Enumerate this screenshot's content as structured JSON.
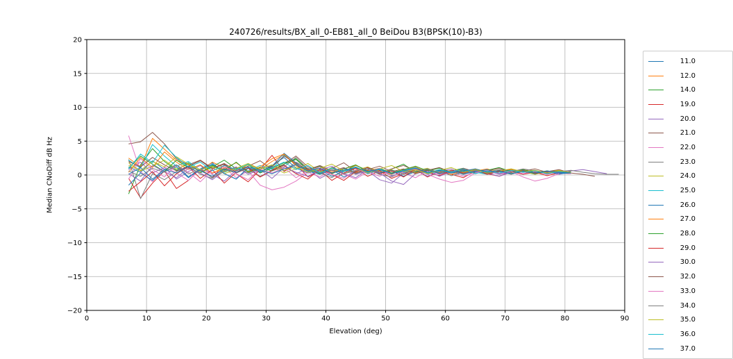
{
  "chart_data": {
    "type": "line",
    "title": "240726/results/BX_all_0-EB81_all_0 BeiDou B3(BPSK(10)-B3)",
    "xlabel": "Elevation (deg)",
    "ylabel": "Median CNoDiff dB Hz",
    "xlim": [
      0,
      90
    ],
    "ylim": [
      -20,
      20
    ],
    "x_ticks": [
      0,
      10,
      20,
      30,
      40,
      50,
      60,
      70,
      80,
      90
    ],
    "y_ticks": [
      -20,
      -15,
      -10,
      -5,
      0,
      5,
      10,
      15,
      20
    ],
    "grid": true,
    "grid_color": "#b0b0b0",
    "legend_position": "outside-right",
    "series": [
      {
        "name": "11.0",
        "color": "#1f77b4",
        "x_start": 7,
        "x_step": 2,
        "values": [
          1.2,
          0.4,
          2.1,
          0.8,
          1.5,
          -0.3,
          0.9,
          1.8,
          0.2,
          -0.6,
          1.1,
          0.5,
          1.4,
          2.6,
          1.0,
          0.3,
          0.8,
          -0.2,
          0.5,
          1.0,
          0.2,
          0.7,
          -0.1,
          0.4,
          0.9,
          0.3,
          0.6,
          0.1,
          0.5,
          0.8,
          0.2,
          0.6,
          0.3,
          0.7,
          0.4,
          0.2,
          0.5,
          0.3
        ]
      },
      {
        "name": "12.0",
        "color": "#ff7f0e",
        "x_start": 7,
        "x_step": 2,
        "values": [
          2.5,
          1.2,
          5.4,
          3.8,
          2.2,
          1.5,
          0.6,
          1.9,
          1.1,
          0.3,
          1.6,
          0.8,
          2.0,
          3.0,
          1.4,
          0.5,
          1.2,
          0.2,
          0.9,
          0.4,
          1.1,
          0.6,
          0.1,
          0.8,
          0.3,
          0.9,
          0.4,
          0.7,
          0.2,
          0.6,
          0.9,
          0.3,
          0.5,
          0.8,
          0.4,
          0.6,
          0.2,
          0.4
        ]
      },
      {
        "name": "14.0",
        "color": "#2ca02c",
        "x_start": 7,
        "x_step": 2,
        "values": [
          -2.8,
          1.5,
          3.9,
          2.0,
          0.7,
          1.8,
          0.4,
          1.2,
          2.2,
          0.9,
          1.5,
          0.3,
          1.0,
          1.8,
          2.4,
          0.8,
          0.2,
          1.1,
          0.5,
          1.4,
          0.7,
          0.2,
          0.9,
          1.6,
          0.4,
          0.8,
          0.1,
          0.6,
          1.0,
          0.4,
          0.7,
          0.2,
          0.8,
          0.5,
          0.1,
          0.6,
          0.3,
          0.5
        ]
      },
      {
        "name": "19.0",
        "color": "#d62728",
        "x_start": 7,
        "x_step": 2,
        "values": [
          -0.5,
          -3.4,
          -1.2,
          0.6,
          -2.0,
          -0.8,
          0.9,
          -0.4,
          1.5,
          0.2,
          -1.0,
          0.8,
          2.9,
          0.5,
          1.6,
          -0.3,
          0.7,
          -0.8,
          0.3,
          1.0,
          -0.2,
          0.6,
          -0.5,
          0.2,
          0.8,
          -0.3,
          0.5,
          0.1,
          -0.4,
          0.6,
          0.2,
          -0.2,
          0.5,
          0.1,
          0.4,
          -0.1,
          0.3,
          0.2
        ]
      },
      {
        "name": "20.0",
        "color": "#9467bd",
        "x_start": 7,
        "x_step": 2,
        "values": [
          0.8,
          1.9,
          0.3,
          1.1,
          -0.6,
          0.5,
          1.4,
          0.1,
          -0.9,
          0.7,
          1.2,
          -0.3,
          0.6,
          1.5,
          0.2,
          0.9,
          -0.5,
          0.4,
          1.0,
          0.1,
          0.6,
          -0.7,
          -1.2,
          0.3,
          0.8,
          -0.2,
          0.5,
          0.9,
          0.1,
          0.6,
          0.3,
          -0.2,
          0.4,
          0.7,
          0.2,
          0.5,
          0.1,
          0.4
        ]
      },
      {
        "name": "21.0",
        "color": "#8c564b",
        "x_start": 7,
        "x_step": 2,
        "values": [
          4.6,
          4.9,
          6.3,
          4.6,
          2.4,
          1.5,
          2.2,
          1.0,
          1.7,
          0.6,
          1.3,
          2.1,
          0.8,
          1.6,
          2.8,
          1.2,
          0.4,
          1.0,
          1.8,
          0.5,
          1.1,
          0.3,
          0.9,
          1.4,
          0.6,
          0.2,
          0.8,
          0.4,
          1.0,
          0.5,
          0.2,
          0.7,
          0.3,
          0.6,
          0.9,
          0.4,
          0.6,
          0.3
        ]
      },
      {
        "name": "22.0",
        "color": "#e377c2",
        "x_start": 7,
        "x_step": 2,
        "values": [
          5.8,
          0.5,
          -1.0,
          1.2,
          0.3,
          -0.8,
          0.9,
          0.2,
          1.1,
          -0.4,
          0.6,
          -1.5,
          -2.2,
          -1.8,
          -0.9,
          0.4,
          -0.3,
          0.8,
          0.1,
          -0.6,
          0.5,
          -0.2,
          0.7,
          0.3,
          -0.4,
          0.6,
          0.1,
          0.5,
          -0.2,
          0.4,
          0.8,
          0.3,
          0.6,
          0.2,
          0.5,
          0.1,
          0.4,
          0.2
        ]
      },
      {
        "name": "23.0",
        "color": "#7f7f7f",
        "x_start": 7,
        "x_step": 2,
        "values": [
          2.3,
          -3.5,
          0.2,
          -0.7,
          0.5,
          1.3,
          0.1,
          -0.5,
          0.8,
          0.3,
          1.0,
          -0.2,
          0.6,
          1.2,
          2.6,
          0.9,
          0.3,
          -0.4,
          0.7,
          0.2,
          0.8,
          0.1,
          -0.3,
          0.5,
          0.9,
          0.2,
          0.6,
          -0.1,
          0.4,
          0.7,
          0.2,
          0.5,
          0.1,
          0.6,
          0.3,
          0.5,
          0.2,
          0.4
        ]
      },
      {
        "name": "24.0",
        "color": "#bcbd22",
        "x_start": 7,
        "x_step": 2,
        "values": [
          1.8,
          0.6,
          1.3,
          2.2,
          0.9,
          1.6,
          0.4,
          1.1,
          0.2,
          0.8,
          1.5,
          0.6,
          1.2,
          0.3,
          0.9,
          1.7,
          0.5,
          1.0,
          0.2,
          0.7,
          1.2,
          0.4,
          0.8,
          0.1,
          0.6,
          1.0,
          0.3,
          0.7,
          0.2,
          0.9,
          0.5,
          0.8,
          0.3,
          0.6,
          0.1,
          0.5,
          0.7,
          0.4
        ]
      },
      {
        "name": "25.0",
        "color": "#17becf",
        "x_start": 7,
        "x_step": 2,
        "values": [
          2.2,
          1.0,
          4.5,
          2.8,
          1.3,
          2.0,
          0.7,
          1.5,
          0.4,
          1.1,
          0.6,
          1.4,
          0.8,
          2.9,
          1.6,
          0.5,
          1.2,
          0.3,
          0.9,
          0.5,
          1.0,
          0.2,
          0.7,
          0.4,
          0.8,
          0.1,
          0.6,
          0.3,
          0.7,
          0.4,
          0.1,
          0.5,
          0.2,
          0.6,
          0.3,
          0.5,
          0.2,
          0.4
        ]
      },
      {
        "name": "26.0",
        "color": "#1f77b4",
        "x_start": 7,
        "x_step": 2,
        "values": [
          -1.5,
          0.3,
          -0.8,
          0.6,
          1.2,
          -0.4,
          0.8,
          1.6,
          0.2,
          -0.6,
          1.0,
          0.4,
          1.3,
          3.2,
          1.8,
          0.6,
          0.1,
          0.8,
          -0.3,
          0.5,
          1.1,
          0.3,
          0.7,
          -0.2,
          0.5,
          0.9,
          0.2,
          0.6,
          0.1,
          0.5,
          0.8,
          0.2,
          0.4,
          0.7,
          0.3,
          0.5,
          0.2,
          0.3
        ]
      },
      {
        "name": "27.0",
        "color": "#ff7f0e",
        "x_start": 7,
        "x_step": 2,
        "values": [
          0.4,
          2.6,
          1.1,
          3.4,
          1.9,
          0.8,
          1.5,
          0.3,
          1.0,
          1.8,
          0.5,
          1.2,
          2.4,
          3.1,
          1.5,
          0.7,
          1.3,
          0.4,
          0.9,
          1.4,
          0.6,
          1.0,
          0.3,
          0.8,
          1.2,
          0.4,
          0.7,
          0.1,
          0.6,
          0.9,
          0.3,
          0.6,
          0.8,
          0.4,
          0.6,
          0.2,
          0.5,
          0.3
        ]
      },
      {
        "name": "28.0",
        "color": "#2ca02c",
        "x_start": 7,
        "x_step": 2,
        "values": [
          1.0,
          2.8,
          1.6,
          0.5,
          2.2,
          1.1,
          0.3,
          1.4,
          0.7,
          1.9,
          0.4,
          1.1,
          0.6,
          1.6,
          2.3,
          0.8,
          1.3,
          0.2,
          0.9,
          1.5,
          0.5,
          1.0,
          0.3,
          0.8,
          1.3,
          0.6,
          1.0,
          0.4,
          0.8,
          0.2,
          0.7,
          1.1,
          0.5,
          0.8,
          0.3,
          0.6,
          0.4,
          0.5
        ]
      },
      {
        "name": "29.0",
        "color": "#d62728",
        "x_start": 7,
        "x_step": 2,
        "values": [
          -2.4,
          -1.0,
          0.5,
          -1.6,
          0.2,
          1.2,
          -0.5,
          0.8,
          -1.2,
          0.4,
          1.0,
          -0.3,
          0.7,
          1.4,
          0.2,
          -0.6,
          0.9,
          0.1,
          -0.8,
          0.5,
          1.1,
          0.2,
          0.6,
          -0.3,
          0.9,
          0.4,
          -0.1,
          0.7,
          0.3,
          0.8,
          0.1,
          0.5,
          0.9,
          0.4,
          0.6,
          0.2,
          0.5,
          0.3
        ]
      },
      {
        "name": "30.0",
        "color": "#9467bd",
        "x_start": 7,
        "x_step": 2,
        "values": [
          0.2,
          -0.9,
          1.4,
          0.5,
          -0.4,
          1.0,
          0.3,
          -0.7,
          0.6,
          1.2,
          0.1,
          0.8,
          -0.5,
          1.1,
          0.4,
          -0.2,
          0.7,
          1.3,
          0.2,
          -0.4,
          0.8,
          0.3,
          -0.9,
          -1.4,
          0.2,
          0.6,
          -0.2,
          0.5,
          0.9,
          0.3,
          0.6,
          0.1,
          0.4,
          0.7,
          0.2,
          0.5,
          0.3,
          0.6,
          0.8,
          0.5,
          0.2
        ]
      },
      {
        "name": "32.0",
        "color": "#8c564b",
        "x_start": 7,
        "x_step": 2,
        "values": [
          2.0,
          1.2,
          2.6,
          1.5,
          0.6,
          1.3,
          2.1,
          0.9,
          1.6,
          0.4,
          1.0,
          0.5,
          1.2,
          2.8,
          1.7,
          0.8,
          1.4,
          0.6,
          1.1,
          0.3,
          0.8,
          1.3,
          0.5,
          0.9,
          0.2,
          0.7,
          1.1,
          0.4,
          0.8,
          0.3,
          0.6,
          1.0,
          0.4,
          0.7,
          0.2,
          0.5,
          0.8,
          0.3,
          0.1,
          -0.2
        ]
      },
      {
        "name": "33.0",
        "color": "#e377c2",
        "x_start": 7,
        "x_step": 2,
        "values": [
          -0.6,
          2.4,
          0.8,
          -0.3,
          1.5,
          0.4,
          -1.0,
          0.7,
          1.3,
          0.2,
          -0.7,
          0.9,
          0.3,
          1.1,
          -0.4,
          0.6,
          1.2,
          0.1,
          -0.5,
          0.8,
          0.4,
          1.0,
          -0.2,
          0.5,
          0.9,
          0.1,
          -0.6,
          -1.1,
          -0.8,
          0.3,
          0.7,
          0.2,
          0.5,
          -0.3,
          -0.9,
          -0.5,
          0.2
        ]
      },
      {
        "name": "34.0",
        "color": "#7f7f7f",
        "x_start": 7,
        "x_step": 2,
        "values": [
          0.6,
          -0.2,
          1.0,
          0.4,
          1.5,
          0.2,
          0.8,
          -0.4,
          0.5,
          1.1,
          0.3,
          0.9,
          1.4,
          0.6,
          1.9,
          1.0,
          0.4,
          0.8,
          0.2,
          0.6,
          1.0,
          0.4,
          0.7,
          0.1,
          0.5,
          0.9,
          0.3,
          0.6,
          0.2,
          0.7,
          0.4,
          0.8,
          0.5,
          0.9,
          0.6,
          0.3,
          0.5,
          0.7,
          0.4,
          0.2,
          0.1,
          0.1
        ]
      },
      {
        "name": "35.0",
        "color": "#bcbd22",
        "x_start": 7,
        "x_step": 2,
        "values": [
          1.4,
          0.7,
          2.0,
          1.2,
          2.7,
          1.6,
          0.8,
          1.3,
          0.5,
          1.0,
          1.7,
          0.9,
          1.5,
          0.7,
          1.2,
          0.4,
          1.0,
          1.6,
          0.6,
          1.1,
          0.3,
          0.9,
          1.4,
          0.5,
          0.8,
          0.2,
          0.7,
          1.1,
          0.4,
          0.8,
          0.3,
          0.6,
          0.9,
          0.5,
          0.7,
          0.3,
          0.6,
          0.4
        ]
      },
      {
        "name": "36.0",
        "color": "#17becf",
        "x_start": 7,
        "x_step": 2,
        "values": [
          0.9,
          3.1,
          1.8,
          4.4,
          2.6,
          1.2,
          1.9,
          0.6,
          1.4,
          0.8,
          1.6,
          0.5,
          1.1,
          1.9,
          0.8,
          1.4,
          0.3,
          1.0,
          0.5,
          1.2,
          0.4,
          0.9,
          0.2,
          0.7,
          1.1,
          0.3,
          0.8,
          0.4,
          0.9,
          0.2,
          0.6,
          0.3,
          0.7,
          0.4,
          0.6,
          0.2,
          0.5,
          0.3
        ]
      },
      {
        "name": "37.0",
        "color": "#1f77b4",
        "x_start": 7,
        "x_step": 2,
        "values": [
          0.1,
          1.1,
          -0.6,
          0.8,
          0.3,
          1.3,
          0.6,
          -0.2,
          0.9,
          0.4,
          1.2,
          0.7,
          0.2,
          0.9,
          1.5,
          0.6,
          1.0,
          0.3,
          0.7,
          1.1,
          0.5,
          0.8,
          0.2,
          0.6,
          1.0,
          0.4,
          0.7,
          0.3,
          0.6,
          0.9,
          0.4,
          0.6,
          0.2,
          0.5,
          0.3,
          0.6,
          0.4,
          0.3
        ]
      }
    ]
  }
}
